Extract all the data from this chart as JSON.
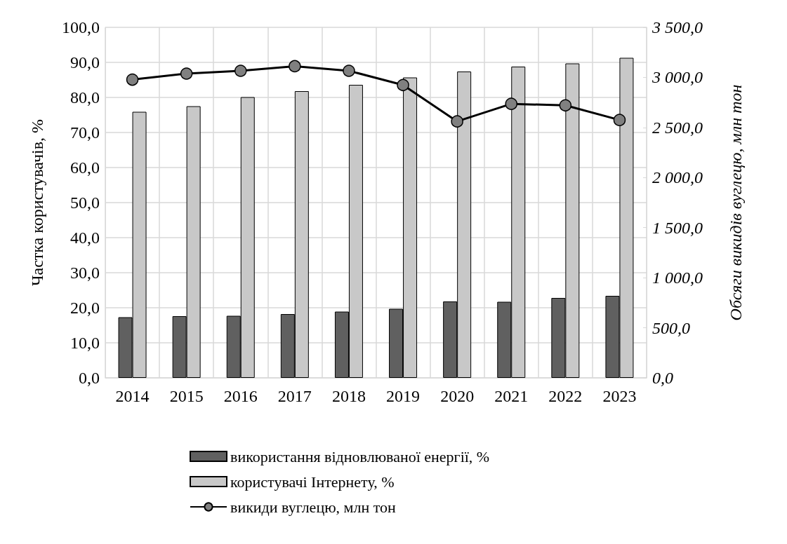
{
  "chart_data": {
    "type": "bar",
    "ylabel": "Частка користувачів, %",
    "y2label": "Обсяги викидів вуглецю, млн тон",
    "categories": [
      "2014",
      "2015",
      "2016",
      "2017",
      "2018",
      "2019",
      "2020",
      "2021",
      "2022",
      "2023"
    ],
    "series": [
      {
        "name": "використання відновлюваної енергії, %",
        "color": "#606060",
        "values": [
          17.3,
          17.6,
          17.7,
          18.2,
          18.9,
          19.7,
          21.8,
          21.7,
          22.8,
          23.4
        ]
      },
      {
        "name": "користувачі Інтернету, %",
        "color": "#c8c8c8",
        "values": [
          75.9,
          77.5,
          80.1,
          81.8,
          83.6,
          85.7,
          87.4,
          88.8,
          89.7,
          91.3
        ]
      },
      {
        "name": "викиди вуглецю, млн тон",
        "type": "line",
        "axis": "y2",
        "color": "#000000",
        "values": [
          2978,
          3038,
          3066,
          3112,
          3066,
          2924,
          2561,
          2736,
          2721,
          2575
        ]
      }
    ],
    "ylim": [
      0,
      100
    ],
    "yticks": [
      {
        "value": 0,
        "label": "0,0"
      },
      {
        "value": 10,
        "label": "10,0"
      },
      {
        "value": 20,
        "label": "20,0"
      },
      {
        "value": 30,
        "label": "30,0"
      },
      {
        "value": 40,
        "label": "40,0"
      },
      {
        "value": 50,
        "label": "50,0"
      },
      {
        "value": 60,
        "label": "60,0"
      },
      {
        "value": 70,
        "label": "70,0"
      },
      {
        "value": 80,
        "label": "80,0"
      },
      {
        "value": 90,
        "label": "90,0"
      },
      {
        "value": 100,
        "label": "100,0"
      }
    ],
    "y2lim": [
      0,
      3500
    ],
    "y2ticks": [
      {
        "value": 0,
        "label": "0,0"
      },
      {
        "value": 500,
        "label": "500,0"
      },
      {
        "value": 1000,
        "label": "1 000,0"
      },
      {
        "value": 1500,
        "label": "1 500,0"
      },
      {
        "value": 2000,
        "label": "2 000,0"
      },
      {
        "value": 2500,
        "label": "2 500,0"
      },
      {
        "value": 3000,
        "label": "3 000,0"
      },
      {
        "value": 3500,
        "label": "3 500,0"
      }
    ],
    "grid": true,
    "legend": "bottom",
    "marker": "circle",
    "line_style": "solid"
  }
}
